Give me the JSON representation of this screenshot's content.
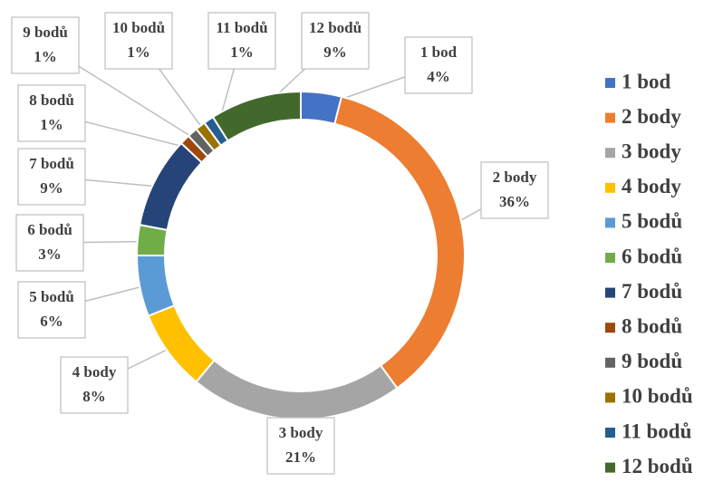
{
  "chart_data": {
    "type": "donut",
    "categories": [
      "1 bod",
      "2 body",
      "3 body",
      "4 body",
      "5 bodů",
      "6 bodů",
      "7 bodů",
      "8 bodů",
      "9 bodů",
      "10 bodů",
      "11 bodů",
      "12 bodů"
    ],
    "values": [
      4,
      36,
      21,
      8,
      6,
      3,
      9,
      1,
      1,
      1,
      1,
      9
    ],
    "value_labels": [
      "4%",
      "36%",
      "21%",
      "8%",
      "6%",
      "3%",
      "9%",
      "1%",
      "1%",
      "1%",
      "1%",
      "9%"
    ],
    "colors": [
      "#4472c4",
      "#ed7d31",
      "#a5a5a5",
      "#ffc000",
      "#5b9bd5",
      "#70ad47",
      "#264478",
      "#9e480e",
      "#636363",
      "#997300",
      "#255e91",
      "#43682b"
    ],
    "legend": "right"
  }
}
